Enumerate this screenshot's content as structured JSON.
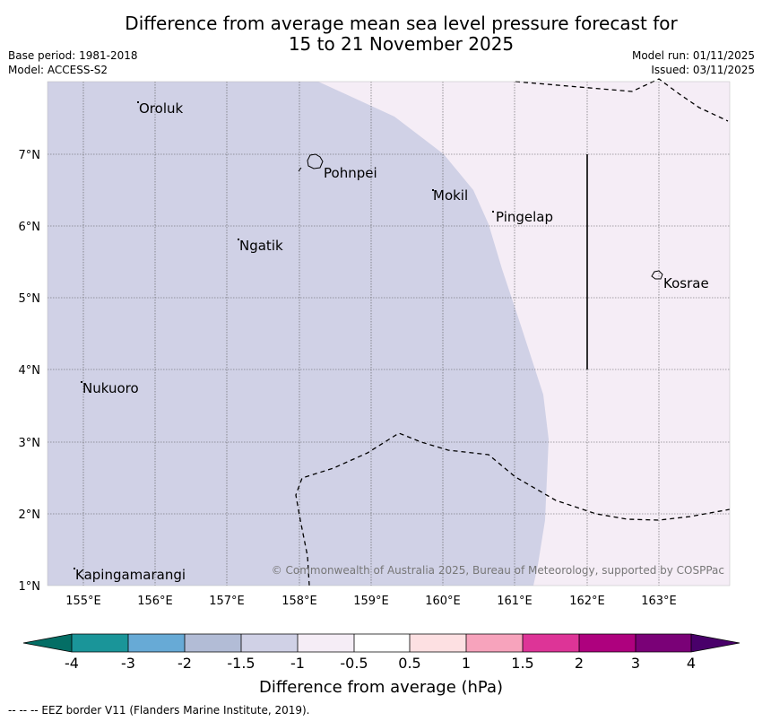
{
  "title": {
    "line1": "Difference from average mean sea level pressure forecast for",
    "line2": "15 to 21 November 2025"
  },
  "meta": {
    "base_period": "Base period: 1981-2018",
    "model": "Model: ACCESS-S2",
    "model_run": "Model run: 01/11/2025",
    "issued": "Issued: 03/11/2025"
  },
  "map": {
    "lat_labels": [
      "1°N",
      "2°N",
      "3°N",
      "4°N",
      "5°N",
      "6°N",
      "7°N"
    ],
    "lon_labels": [
      "155°E",
      "156°E",
      "157°E",
      "158°E",
      "159°E",
      "160°E",
      "161°E",
      "162°E",
      "163°E"
    ],
    "places": [
      "Oroluk",
      "Pohnpei",
      "Mokil",
      "Pingelap",
      "Ngatik",
      "Kosrae",
      "Nukuoro",
      "Kapingamarangi"
    ],
    "copyright": "© Commonwealth of Australia 2025, Bureau of Meteorology, supported by COSPPac",
    "fill_colors": {
      "minus_1_5_to_minus_1": "#d0d1e6",
      "minus_1_to_minus_0_5": "#f5edf6"
    }
  },
  "colorbar": {
    "ticks": [
      "-4",
      "-3",
      "-2",
      "-1.5",
      "-1",
      "-0.5",
      "0.5",
      "1",
      "1.5",
      "2",
      "3",
      "4"
    ],
    "colors": [
      "#046e65",
      "#1a9599",
      "#67aad6",
      "#b2bcd6",
      "#d0d1e6",
      "#f5edf6",
      "#ffffff",
      "#fde0e2",
      "#f7a3bc",
      "#dd3497",
      "#ae017e",
      "#7a0177",
      "#49006a"
    ],
    "label": "Difference from average (hPa)"
  },
  "footer": "--  --  -- EEZ border V11 (Flanders Marine Institute, 2019)."
}
